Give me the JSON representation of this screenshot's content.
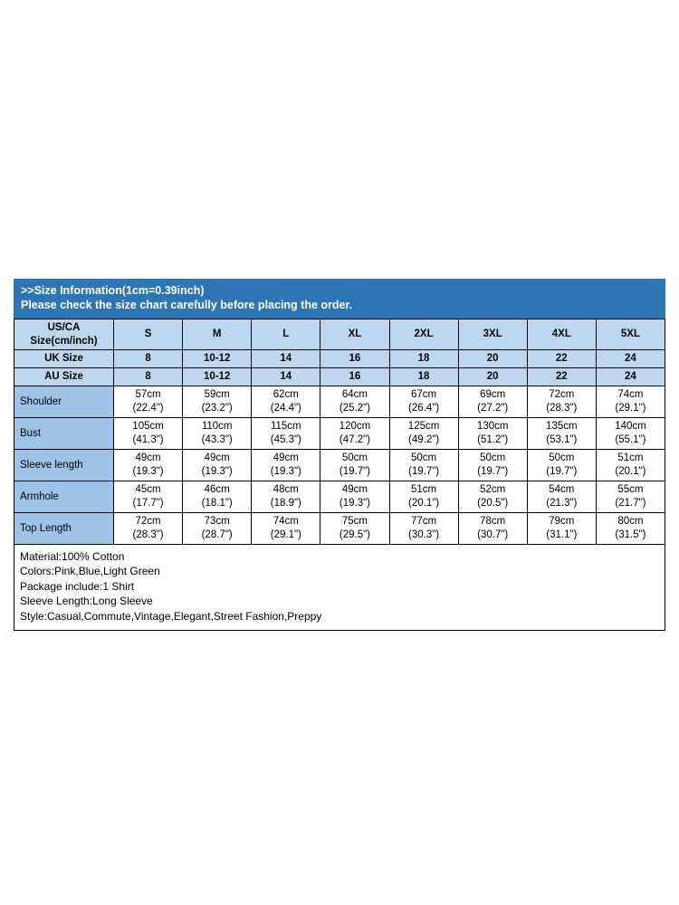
{
  "colors": {
    "banner-bg": "#2E75B6",
    "banner-text": "#FFFFFF",
    "header-row-bg": "#BDD7EE",
    "label-col-bg": "#9DC3E6"
  },
  "banner": {
    "line1": ">>Size Information(1cm=0.39inch)",
    "line2": "Please check the size chart carefully before placing the order."
  },
  "table": {
    "header_rows": [
      {
        "label": "US/CA\nSize(cm/inch)",
        "values": [
          "S",
          "M",
          "L",
          "XL",
          "2XL",
          "3XL",
          "4XL",
          "5XL"
        ]
      },
      {
        "label": "UK Size",
        "values": [
          "8",
          "10-12",
          "14",
          "16",
          "18",
          "20",
          "22",
          "24"
        ]
      },
      {
        "label": "AU Size",
        "values": [
          "8",
          "10-12",
          "14",
          "16",
          "18",
          "20",
          "22",
          "24"
        ]
      }
    ],
    "rows": [
      {
        "label": "Shoulder",
        "values": [
          "57cm\n(22.4\")",
          "59cm\n(23.2\")",
          "62cm\n(24.4\")",
          "64cm\n(25.2\")",
          "67cm\n(26.4\")",
          "69cm\n(27.2\")",
          "72cm\n(28.3\")",
          "74cm\n(29.1\")"
        ]
      },
      {
        "label": "Bust",
        "values": [
          "105cm\n(41.3\")",
          "110cm\n(43.3\")",
          "115cm\n(45.3\")",
          "120cm\n(47.2\")",
          "125cm\n(49.2\")",
          "130cm\n(51.2\")",
          "135cm\n(53.1\")",
          "140cm\n(55.1\")"
        ]
      },
      {
        "label": "Sleeve length",
        "values": [
          "49cm\n(19.3\")",
          "49cm\n(19.3\")",
          "49cm\n(19.3\")",
          "50cm\n(19.7\")",
          "50cm\n(19.7\")",
          "50cm\n(19.7\")",
          "50cm\n(19.7\")",
          "51cm\n(20.1\")"
        ]
      },
      {
        "label": "Armhole",
        "values": [
          "45cm\n(17.7\")",
          "46cm\n(18.1\")",
          "48cm\n(18.9\")",
          "49cm\n(19.3\")",
          "51cm\n(20.1\")",
          "52cm\n(20.5\")",
          "54cm\n(21.3\")",
          "55cm\n(21.7\")"
        ]
      },
      {
        "label": "Top Length",
        "values": [
          "72cm\n(28.3\")",
          "73cm\n(28.7\")",
          "74cm\n(29.1\")",
          "75cm\n(29.5\")",
          "77cm\n(30.3\")",
          "78cm\n(30.7\")",
          "79cm\n(31.1\")",
          "80cm\n(31.5\")"
        ]
      }
    ]
  },
  "info": {
    "lines": [
      "Material:100% Cotton",
      "Colors:Pink,Blue,Light Green",
      "Package include:1 Shirt",
      "Sleeve Length:Long Sleeve",
      "Style:Casual,Commute,Vintage,Elegant,Street Fashion,Preppy"
    ]
  }
}
